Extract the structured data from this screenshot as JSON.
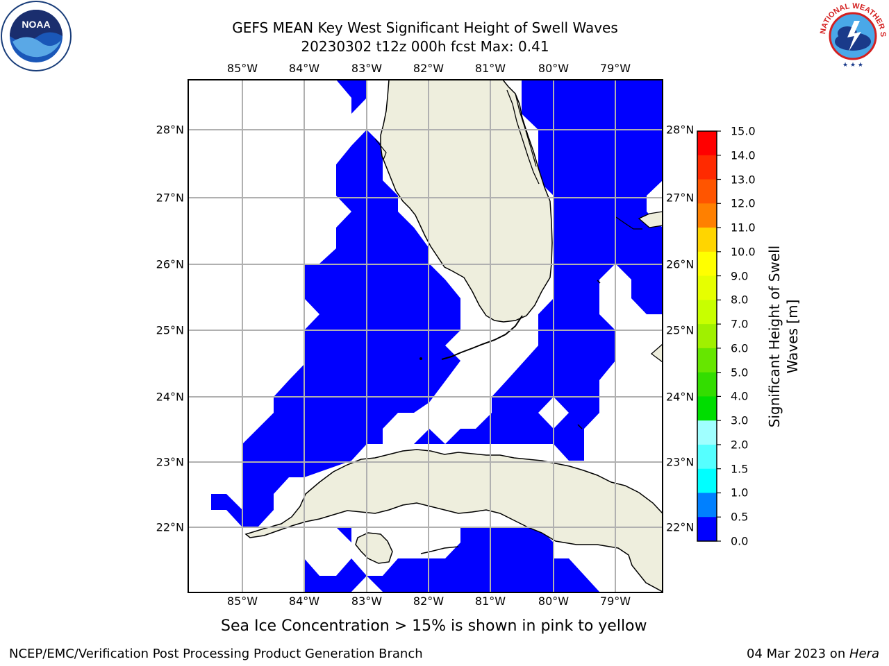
{
  "title": {
    "line1": "GEFS MEAN Key West Significant Height of Swell Waves",
    "line2": "20230302 t12z 000h fcst   Max: 0.41"
  },
  "logos": {
    "left": {
      "text": "NOAA",
      "icon": "noaa-logo"
    },
    "right": {
      "text": "NATIONAL WEATHER SERVICE",
      "icon": "nws-logo"
    }
  },
  "map": {
    "lon_labels": [
      "85°W",
      "84°W",
      "83°W",
      "82°W",
      "81°W",
      "80°W",
      "79°W"
    ],
    "lat_labels_left": [
      "28°N",
      "27°N",
      "26°N",
      "25°N",
      "24°N",
      "23°N",
      "22°N"
    ],
    "lat_labels_right": [
      "28°N",
      "27°N",
      "26°N",
      "25°N",
      "24°N",
      "23°N",
      "22°N"
    ],
    "colors": {
      "wave": "#0000ff",
      "land": "#eeeedd",
      "grid": "#b0b0b0"
    }
  },
  "colorbar": {
    "ticks": [
      "15.0",
      "14.0",
      "13.0",
      "12.0",
      "11.0",
      "10.0",
      "9.0",
      "8.0",
      "7.0",
      "6.0",
      "5.0",
      "4.0",
      "3.0",
      "2.0",
      "1.5",
      "1.0",
      "0.5",
      "0.0"
    ],
    "colors": [
      "#ff0000",
      "#ff2a00",
      "#ff5500",
      "#ff8000",
      "#ffaa00",
      "#ffd500",
      "#ffff00",
      "#e6ff00",
      "#c8ff00",
      "#a0f000",
      "#66e600",
      "#33dd00",
      "#00dd00",
      "#55ee88",
      "#a0ffff",
      "#55ffff",
      "#00ffff",
      "#0080ff",
      "#0000ff"
    ],
    "label_line1": "Significant Height of Swell",
    "label_line2": "Waves [m]"
  },
  "note": "Sea Ice Concentration > 15% is shown in pink to yellow",
  "footer": {
    "left": "NCEP/EMC/Verification Post Processing Product Generation Branch",
    "right_prefix": "04 Mar 2023 on ",
    "right_host": "Hera"
  }
}
